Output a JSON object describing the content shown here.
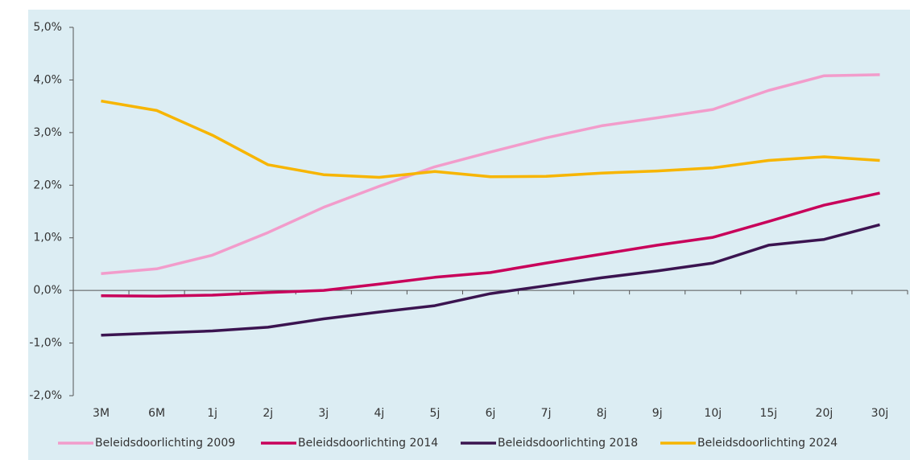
{
  "chart_data": {
    "type": "line",
    "categories": [
      "3M",
      "6M",
      "1j",
      "2j",
      "3j",
      "4j",
      "5j",
      "6j",
      "7j",
      "8j",
      "9j",
      "10j",
      "15j",
      "20j",
      "30j"
    ],
    "series": [
      {
        "name": "Beleidsdoorlichting 2009",
        "color": "#f29ccb",
        "values": [
          0.32,
          0.41,
          0.67,
          1.1,
          1.58,
          1.98,
          2.35,
          2.63,
          2.9,
          3.13,
          3.28,
          3.44,
          3.8,
          4.08,
          4.1
        ]
      },
      {
        "name": "Beleidsdoorlichting 2014",
        "color": "#c8005a",
        "values": [
          -0.1,
          -0.11,
          -0.09,
          -0.04,
          0.0,
          0.12,
          0.25,
          0.34,
          0.52,
          0.69,
          0.86,
          1.01,
          1.31,
          1.62,
          1.85
        ]
      },
      {
        "name": "Beleidsdoorlichting 2018",
        "color": "#3b1450",
        "values": [
          -0.85,
          -0.81,
          -0.77,
          -0.7,
          -0.54,
          -0.41,
          -0.29,
          -0.06,
          0.09,
          0.24,
          0.37,
          0.52,
          0.86,
          0.97,
          1.25
        ]
      },
      {
        "name": "Beleidsdoorlichting 2024",
        "color": "#f7b500",
        "values": [
          3.6,
          3.42,
          2.95,
          2.39,
          2.2,
          2.15,
          2.26,
          2.16,
          2.17,
          2.23,
          2.27,
          2.33,
          2.47,
          2.54,
          2.47
        ]
      }
    ],
    "ylim": [
      -2,
      5
    ],
    "yticks": [
      {
        "value": -2,
        "label": "-2,0%"
      },
      {
        "value": -1,
        "label": "-1,0%"
      },
      {
        "value": 0,
        "label": "0,0%"
      },
      {
        "value": 1,
        "label": "1,0%"
      },
      {
        "value": 2,
        "label": "2,0%"
      },
      {
        "value": 3,
        "label": "3,0%"
      },
      {
        "value": 4,
        "label": "4,0%"
      },
      {
        "value": 5,
        "label": "5,0%"
      }
    ],
    "legend": "bottom"
  }
}
